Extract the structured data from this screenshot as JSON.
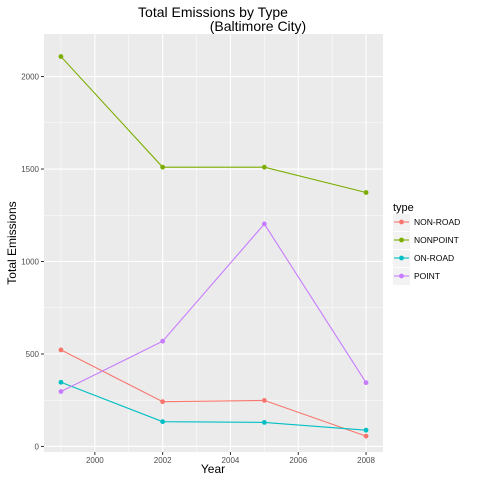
{
  "chart_data": {
    "type": "line",
    "title": "Total Emissions by Type",
    "subtitle": "(Baltimore City)",
    "xlabel": "Year",
    "ylabel": "Total Emissions",
    "x": [
      1999,
      2002,
      2005,
      2008
    ],
    "xlim": [
      1998.5,
      2008.5
    ],
    "ylim": [
      -30,
      2230
    ],
    "x_ticks": [
      2000,
      2002,
      2004,
      2006,
      2008
    ],
    "y_ticks": [
      0,
      500,
      1000,
      1500,
      2000
    ],
    "grid": true,
    "legend_title": "type",
    "legend_position": "right",
    "series": [
      {
        "name": "NON-ROAD",
        "color": "#F8766D",
        "values": [
          522,
          242,
          249,
          56
        ]
      },
      {
        "name": "NONPOINT",
        "color": "#7CAE00",
        "values": [
          2108,
          1510,
          1510,
          1373
        ]
      },
      {
        "name": "ON-ROAD",
        "color": "#00BFC4",
        "values": [
          347,
          134,
          130,
          88
        ]
      },
      {
        "name": "POINT",
        "color": "#C77CFF",
        "values": [
          297,
          569,
          1203,
          345
        ]
      }
    ],
    "panel_background": "#EBEBEB",
    "grid_color": "#FFFFFF"
  }
}
